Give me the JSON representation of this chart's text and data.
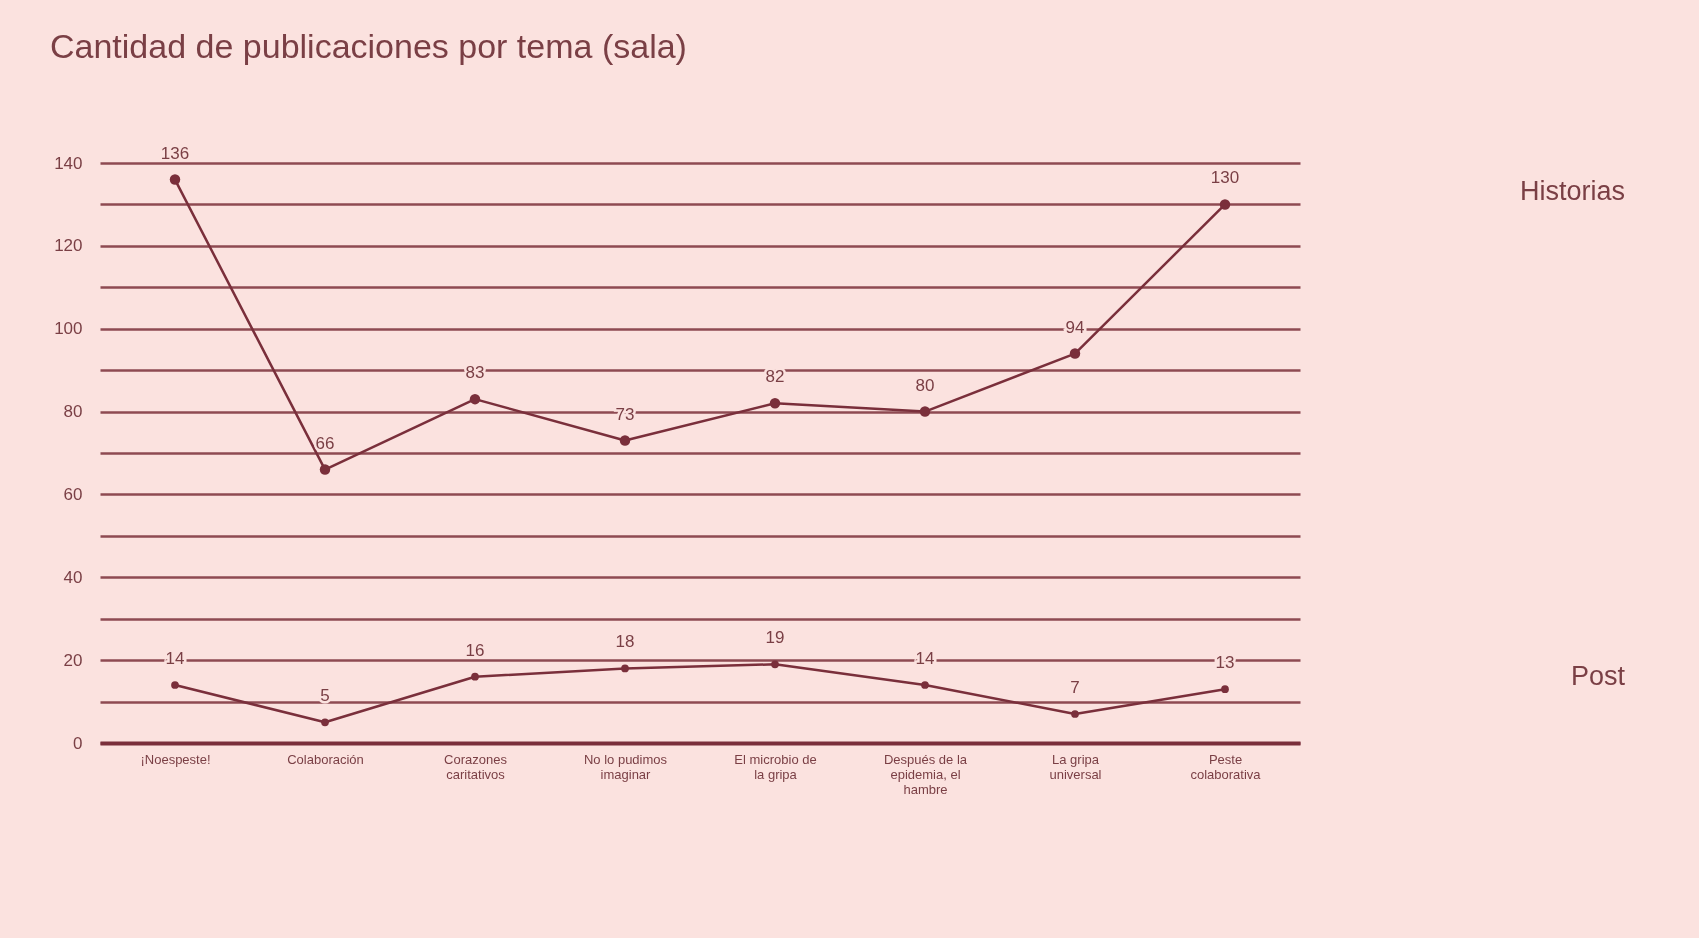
{
  "chart_data": {
    "type": "line",
    "title": "Cantidad de publicaciones por tema (sala)",
    "categories": [
      "¡Noespeste!",
      "Colaboración",
      "Corazones caritativos",
      "No lo pudimos imaginar",
      "El microbio de la gripa",
      "Después de la epidemia, el hambre",
      "La gripa universal",
      "Peste colaborativa"
    ],
    "series": [
      {
        "name": "Historias",
        "color": "#7a2f3b",
        "values": [
          136,
          66,
          83,
          73,
          82,
          80,
          94,
          130
        ]
      },
      {
        "name": "Post",
        "color": "#7a2f3b",
        "values": [
          14,
          5,
          16,
          18,
          19,
          14,
          7,
          13
        ]
      }
    ],
    "ylim": [
      0,
      140
    ],
    "yticks": [
      0,
      {
        "value": 10,
        "label": null
      },
      20,
      {
        "value": 30,
        "label": null
      },
      40,
      {
        "value": 50,
        "label": null
      },
      60,
      {
        "value": 70,
        "label": null
      },
      80,
      {
        "value": 90,
        "label": null
      },
      100,
      {
        "value": 110,
        "label": null
      },
      120,
      {
        "value": 130,
        "label": null
      },
      140
    ],
    "grid": true,
    "marker": "circle",
    "line_style": "solid",
    "data_labels": true
  }
}
